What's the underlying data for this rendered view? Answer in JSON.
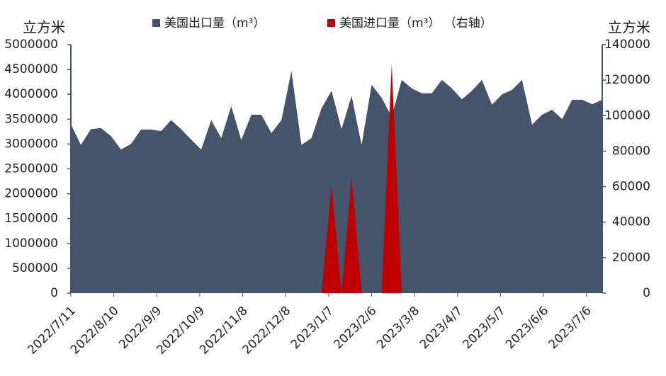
{
  "chart_data": {
    "type": "area",
    "y_title": "立方米",
    "y2_title": "立方米",
    "x": [
      "2022/7/11",
      "2022/7/18",
      "2022/7/25",
      "2022/8/1",
      "2022/8/8",
      "2022/8/15",
      "2022/8/22",
      "2022/8/29",
      "2022/9/5",
      "2022/9/12",
      "2022/9/19",
      "2022/9/26",
      "2022/10/3",
      "2022/10/10",
      "2022/10/17",
      "2022/10/24",
      "2022/10/31",
      "2022/11/7",
      "2022/11/14",
      "2022/11/21",
      "2022/11/28",
      "2022/12/5",
      "2022/12/12",
      "2022/12/19",
      "2022/12/26",
      "2023/1/2",
      "2023/1/9",
      "2023/1/16",
      "2023/1/23",
      "2023/1/30",
      "2023/2/6",
      "2023/2/13",
      "2023/2/20",
      "2023/2/27",
      "2023/3/6",
      "2023/3/13",
      "2023/3/20",
      "2023/3/27",
      "2023/4/3",
      "2023/4/10",
      "2023/4/17",
      "2023/4/24",
      "2023/5/1",
      "2023/5/8",
      "2023/5/15",
      "2023/5/22",
      "2023/5/29",
      "2023/6/5",
      "2023/6/12",
      "2023/6/19",
      "2023/6/26",
      "2023/7/3",
      "2023/7/10",
      "2023/7/17"
    ],
    "series": [
      {
        "name": "美国出口量（m³）",
        "color": "#44546a",
        "values": [
          3400000,
          2980000,
          3300000,
          3320000,
          3160000,
          2890000,
          3000000,
          3290000,
          3290000,
          3260000,
          3480000,
          3300000,
          3090000,
          2890000,
          3480000,
          3120000,
          3760000,
          3080000,
          3590000,
          3590000,
          3220000,
          3480000,
          4470000,
          2980000,
          3120000,
          3720000,
          4070000,
          3300000,
          3970000,
          2980000,
          4190000,
          3930000,
          3550000,
          4290000,
          4120000,
          4020000,
          4020000,
          4290000,
          4120000,
          3900000,
          4070000,
          4290000,
          3790000,
          4000000,
          4090000,
          4290000,
          3390000,
          3590000,
          3690000,
          3500000,
          3890000,
          3890000,
          3800000,
          3890000
        ]
      },
      {
        "name": "美国进口量（m³） （右轴）",
        "color": "#c00000",
        "axis": "y2",
        "values": [
          0,
          0,
          0,
          0,
          0,
          0,
          0,
          0,
          0,
          0,
          0,
          0,
          0,
          0,
          0,
          0,
          0,
          0,
          0,
          0,
          0,
          0,
          0,
          0,
          0,
          0,
          60600,
          0,
          65400,
          0,
          0,
          0,
          129000,
          0,
          0,
          0,
          0,
          0,
          0,
          0,
          0,
          0,
          0,
          0,
          0,
          0,
          0,
          0,
          0,
          0,
          0,
          0,
          0,
          0
        ]
      }
    ],
    "xlim": [
      "2022/7/11",
      "2023/7/17"
    ],
    "xticks": [
      "2022/7/11",
      "2022/8/10",
      "2022/9/9",
      "2022/10/9",
      "2022/11/8",
      "2022/12/8",
      "2023/1/7",
      "2023/2/6",
      "2023/3/8",
      "2023/4/7",
      "2023/5/7",
      "2023/6/6",
      "2023/7/6"
    ],
    "ylim": [
      0,
      5000000
    ],
    "yticks": [
      0,
      500000,
      1000000,
      1500000,
      2000000,
      2500000,
      3000000,
      3500000,
      4000000,
      4500000,
      5000000
    ],
    "y2lim": [
      0,
      140000
    ],
    "y2ticks": [
      0,
      20000,
      40000,
      60000,
      80000,
      100000,
      120000,
      140000
    ],
    "legend": "top"
  }
}
